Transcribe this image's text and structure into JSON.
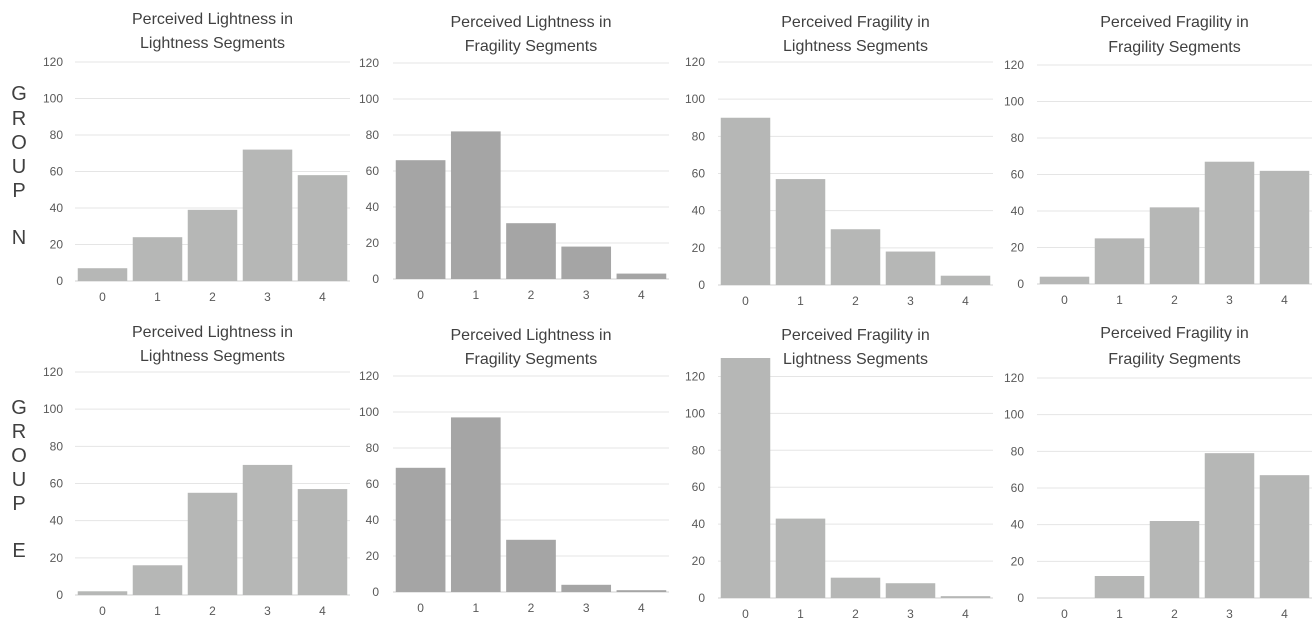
{
  "row_labels": [
    {
      "letters": [
        "G",
        "R",
        "O",
        "U",
        "P",
        "N"
      ]
    },
    {
      "letters": [
        "G",
        "R",
        "O",
        "U",
        "P",
        "E"
      ]
    }
  ],
  "chart_data": [
    {
      "type": "bar",
      "title_lines": [
        "Perceived Lightness in",
        "Lightness Segments"
      ],
      "categories": [
        "0",
        "1",
        "2",
        "3",
        "4"
      ],
      "values": [
        7,
        24,
        39,
        72,
        58
      ],
      "ylim": [
        0,
        120
      ],
      "yticks": [
        0,
        20,
        40,
        60,
        80,
        100,
        120
      ],
      "color": "#b6b7b6",
      "grid": true
    },
    {
      "type": "bar",
      "title_lines": [
        "Perceived Lightness in",
        "Fragility Segments"
      ],
      "categories": [
        "0",
        "1",
        "2",
        "3",
        "4"
      ],
      "values": [
        66,
        82,
        31,
        18,
        3
      ],
      "ylim": [
        0,
        120
      ],
      "yticks": [
        0,
        20,
        40,
        60,
        80,
        100,
        120
      ],
      "color": "#a5a5a5",
      "grid": true
    },
    {
      "type": "bar",
      "title_lines": [
        "Perceived Fragility in",
        "Lightness Segments"
      ],
      "categories": [
        "0",
        "1",
        "2",
        "3",
        "4"
      ],
      "values": [
        90,
        57,
        30,
        18,
        5
      ],
      "ylim": [
        0,
        120
      ],
      "yticks": [
        0,
        20,
        40,
        60,
        80,
        100,
        120
      ],
      "color": "#b6b7b6",
      "grid": true
    },
    {
      "type": "bar",
      "title_lines": [
        "Perceived Fragility in",
        "Fragility Segments"
      ],
      "categories": [
        "0",
        "1",
        "2",
        "3",
        "4"
      ],
      "values": [
        4,
        25,
        42,
        67,
        62
      ],
      "ylim": [
        0,
        120
      ],
      "yticks": [
        0,
        20,
        40,
        60,
        80,
        100,
        120
      ],
      "color": "#b6b7b6",
      "grid": true
    },
    {
      "type": "bar",
      "title_lines": [
        "Perceived Lightness in",
        "Lightness Segments"
      ],
      "categories": [
        "0",
        "1",
        "2",
        "3",
        "4"
      ],
      "values": [
        2,
        16,
        55,
        70,
        57
      ],
      "ylim": [
        0,
        120
      ],
      "yticks": [
        0,
        20,
        40,
        60,
        80,
        100,
        120
      ],
      "color": "#b6b7b6",
      "grid": true
    },
    {
      "type": "bar",
      "title_lines": [
        "Perceived Lightness in",
        "Fragility Segments"
      ],
      "categories": [
        "0",
        "1",
        "2",
        "3",
        "4"
      ],
      "values": [
        69,
        97,
        29,
        4,
        1
      ],
      "ylim": [
        0,
        120
      ],
      "yticks": [
        0,
        20,
        40,
        60,
        80,
        100,
        120
      ],
      "color": "#a5a5a5",
      "grid": true
    },
    {
      "type": "bar",
      "title_lines": [
        "Perceived Fragility in",
        "Lightness Segments"
      ],
      "categories": [
        "0",
        "1",
        "2",
        "3",
        "4"
      ],
      "values": [
        130,
        43,
        11,
        8,
        1
      ],
      "ylim": [
        0,
        130
      ],
      "yticks": [
        0,
        20,
        40,
        60,
        80,
        100,
        120
      ],
      "color": "#b6b7b6",
      "grid": true
    },
    {
      "type": "bar",
      "title_lines": [
        "Perceived Fragility in",
        "Fragility Segments"
      ],
      "categories": [
        "0",
        "1",
        "2",
        "3",
        "4"
      ],
      "values": [
        0,
        12,
        42,
        79,
        67
      ],
      "ylim": [
        0,
        120
      ],
      "yticks": [
        0,
        20,
        40,
        60,
        80,
        100,
        120
      ],
      "color": "#b6b7b6",
      "grid": true
    }
  ]
}
